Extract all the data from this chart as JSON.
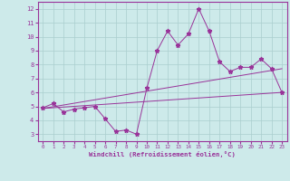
{
  "xlabel": "Windchill (Refroidissement éolien,°C)",
  "ylabel": "",
  "background_color": "#cdeaea",
  "grid_color": "#aacece",
  "line_color": "#993399",
  "xlim": [
    -0.5,
    23.5
  ],
  "ylim": [
    2.5,
    12.5
  ],
  "xticks": [
    0,
    1,
    2,
    3,
    4,
    5,
    6,
    7,
    8,
    9,
    10,
    11,
    12,
    13,
    14,
    15,
    16,
    17,
    18,
    19,
    20,
    21,
    22,
    23
  ],
  "yticks": [
    3,
    4,
    5,
    6,
    7,
    8,
    9,
    10,
    11,
    12
  ],
  "main_x": [
    0,
    1,
    2,
    3,
    4,
    5,
    6,
    7,
    8,
    9,
    10,
    11,
    12,
    13,
    14,
    15,
    16,
    17,
    18,
    19,
    20,
    21,
    22,
    23
  ],
  "main_y": [
    4.9,
    5.2,
    4.6,
    4.8,
    4.9,
    5.0,
    4.1,
    3.2,
    3.3,
    3.0,
    6.3,
    9.0,
    10.4,
    9.4,
    10.2,
    12.0,
    10.4,
    8.2,
    7.5,
    7.8,
    7.8,
    8.4,
    7.7,
    6.0
  ],
  "line1_x": [
    0,
    23
  ],
  "line1_y": [
    4.85,
    6.0
  ],
  "line3_x": [
    0,
    23
  ],
  "line3_y": [
    4.85,
    7.7
  ]
}
